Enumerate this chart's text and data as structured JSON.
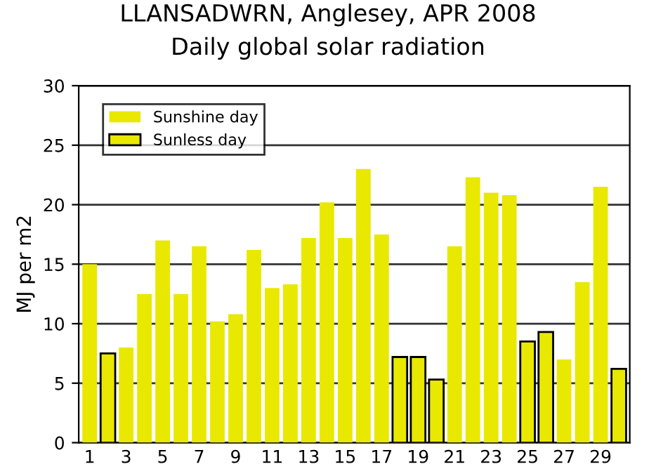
{
  "chart_data": {
    "type": "bar",
    "title": "LLANSADWRN, Anglesey, APR 2008",
    "subtitle": "Daily global solar radiation",
    "ylabel": "MJ per m2",
    "categories": [
      "1",
      null,
      "3",
      null,
      "5",
      null,
      "7",
      null,
      "9",
      null,
      "11",
      null,
      "13",
      null,
      "15",
      null,
      "17",
      null,
      "19",
      null,
      "21",
      null,
      "23",
      null,
      "25",
      null,
      "27",
      null,
      "29",
      null
    ],
    "series": [
      {
        "name": "Sunshine day",
        "color": "#e8e800",
        "values": [
          15,
          null,
          8,
          12.5,
          17,
          12.5,
          16.5,
          10.2,
          10.8,
          16.2,
          13,
          13.3,
          17.2,
          20.2,
          17.2,
          23,
          17.5,
          null,
          null,
          null,
          16.5,
          22.3,
          21,
          20.8,
          null,
          null,
          7,
          13.5,
          21.5,
          null
        ]
      },
      {
        "name": "Sunless day",
        "color": "#e8e800",
        "values": [
          null,
          7.5,
          null,
          null,
          null,
          null,
          null,
          null,
          null,
          null,
          null,
          null,
          null,
          null,
          null,
          null,
          null,
          7.2,
          7.2,
          5.3,
          null,
          null,
          null,
          null,
          8.5,
          9.3,
          null,
          null,
          null,
          6.2
        ]
      }
    ],
    "ylim": [
      0,
      30
    ],
    "yticks": [
      0,
      5,
      10,
      15,
      20,
      25,
      30
    ],
    "grid": "y",
    "legend": "top left"
  }
}
